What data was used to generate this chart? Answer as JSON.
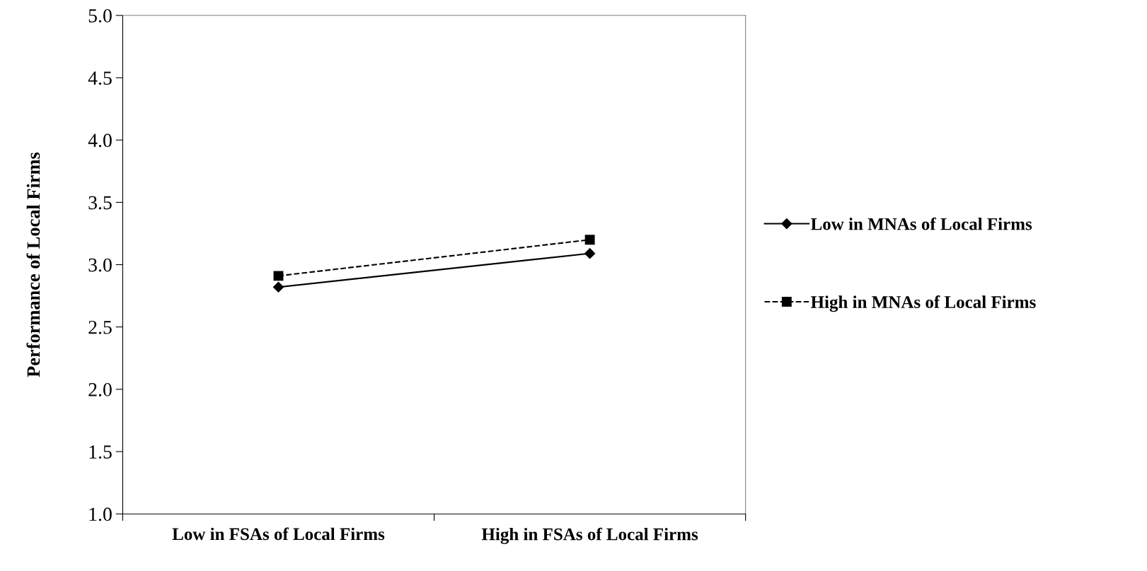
{
  "chart_data": {
    "type": "line",
    "ylabel": "Performance of Local Firms",
    "categories": [
      "Low in FSAs of Local Firms",
      "High in FSAs of Local Firms"
    ],
    "series": [
      {
        "name": "Low in MNAs of Local Firms",
        "color": "#000000",
        "values": [
          2.82,
          3.09
        ],
        "marker": "diamond",
        "line_style": "solid"
      },
      {
        "name": "High in MNAs of Local Firms",
        "color": "#000000",
        "values": [
          2.91,
          3.2
        ],
        "marker": "square",
        "line_style": "dashed"
      }
    ],
    "ylim": [
      1.0,
      5.0
    ],
    "yticks": [
      {
        "value": 1.0,
        "label": "1.0"
      },
      {
        "value": 1.5,
        "label": "1.5"
      },
      {
        "value": 2.0,
        "label": "2.0"
      },
      {
        "value": 2.5,
        "label": "2.5"
      },
      {
        "value": 3.0,
        "label": "3.0"
      },
      {
        "value": 3.5,
        "label": "3.5"
      },
      {
        "value": 4.0,
        "label": "4.0"
      },
      {
        "value": 4.5,
        "label": "4.5"
      },
      {
        "value": 5.0,
        "label": "5.0"
      }
    ],
    "grid": false,
    "legend": "right"
  }
}
